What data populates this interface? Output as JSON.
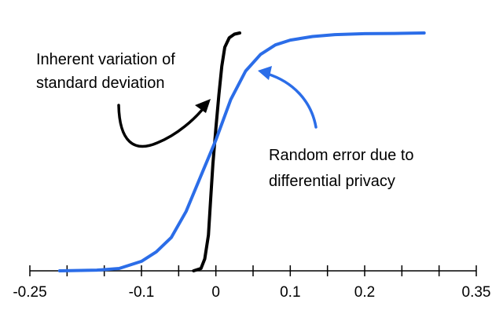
{
  "chart_data": {
    "type": "line",
    "title": "",
    "xlabel": "",
    "ylabel": "",
    "xlim": [
      -0.25,
      0.35
    ],
    "ylim": [
      0,
      1
    ],
    "grid": false,
    "legend": "none",
    "x_tick_labels": [
      {
        "value": -0.25,
        "label": "-0.25"
      },
      {
        "value": -0.1,
        "label": "-0.1"
      },
      {
        "value": 0,
        "label": "0"
      },
      {
        "value": 0.1,
        "label": "0.1"
      },
      {
        "value": 0.2,
        "label": "0.2"
      },
      {
        "value": 0.35,
        "label": "0.35"
      }
    ],
    "minor_ticks": [
      -0.2,
      -0.15,
      -0.05,
      0.05,
      0.15,
      0.25,
      0.3
    ],
    "series": [
      {
        "color": "#000000",
        "x": [
          -0.03,
          -0.02,
          -0.015,
          -0.01,
          -0.007,
          -0.004,
          0.0,
          0.004,
          0.008,
          0.012,
          0.018,
          0.025,
          0.032
        ],
        "y": [
          0.0,
          0.01,
          0.05,
          0.15,
          0.3,
          0.45,
          0.6,
          0.74,
          0.86,
          0.94,
          0.98,
          0.995,
          1.0
        ]
      },
      {
        "color": "#2b6de8",
        "x": [
          -0.21,
          -0.16,
          -0.13,
          -0.1,
          -0.08,
          -0.06,
          -0.04,
          -0.02,
          0.0,
          0.02,
          0.04,
          0.06,
          0.08,
          0.1,
          0.13,
          0.16,
          0.2,
          0.24,
          0.28
        ],
        "y": [
          0.0,
          0.003,
          0.01,
          0.04,
          0.08,
          0.14,
          0.25,
          0.4,
          0.55,
          0.72,
          0.84,
          0.91,
          0.95,
          0.97,
          0.985,
          0.993,
          0.997,
          0.998,
          1.0
        ]
      }
    ],
    "annotations": [
      {
        "lines": [
          "Inherent variation of",
          "standard deviation"
        ],
        "color": "#000000"
      },
      {
        "lines": [
          "Random error due to",
          "differential privacy"
        ],
        "color": "#2b6de8"
      }
    ]
  }
}
